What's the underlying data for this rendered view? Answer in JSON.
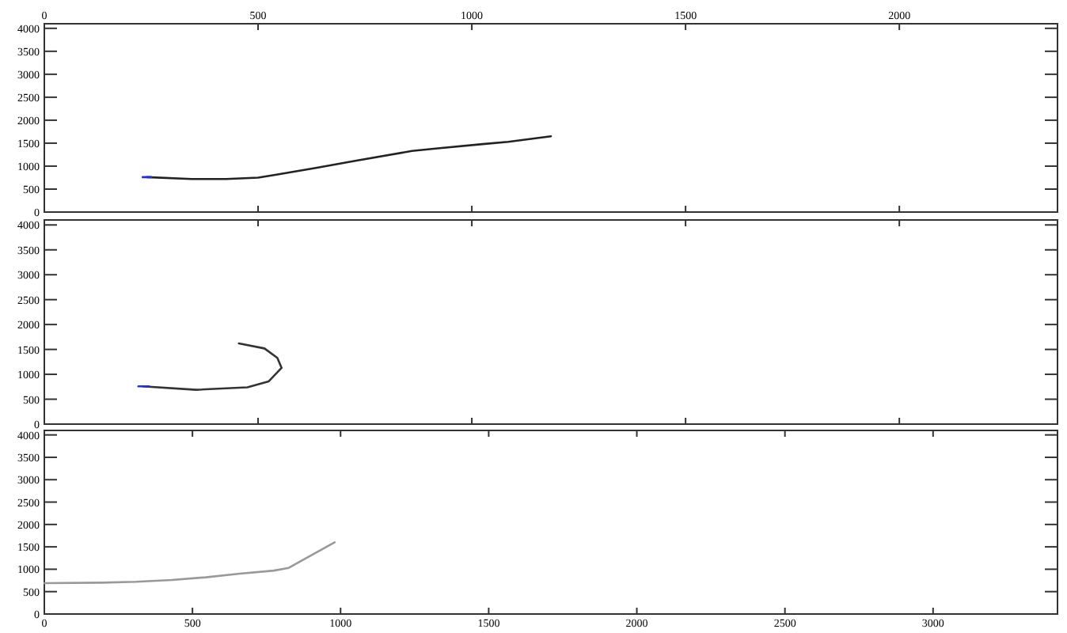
{
  "chart_data": [
    {
      "type": "line",
      "xlim": [
        0,
        2370
      ],
      "xticks": [
        0,
        500,
        1000,
        1500,
        2000
      ],
      "ylim": [
        0,
        4100
      ],
      "yticks": [
        0,
        500,
        1000,
        1500,
        2000,
        2500,
        3000,
        3500,
        4000
      ],
      "grid": false,
      "series": [
        {
          "color": "#222222",
          "x": [
            240,
            345,
            425,
            500,
            540,
            635,
            730,
            860,
            925,
            1025,
            1085,
            1135,
            1185
          ],
          "values": [
            760,
            720,
            720,
            750,
            810,
            960,
            1120,
            1330,
            1390,
            1480,
            1530,
            1590,
            1650
          ]
        },
        {
          "color": "#2233cc",
          "x": [
            230,
            250
          ],
          "values": [
            760,
            760
          ]
        }
      ]
    },
    {
      "type": "line",
      "xlim": [
        0,
        2370
      ],
      "xticks": [
        0,
        500,
        1000,
        1500,
        2000
      ],
      "ylim": [
        0,
        4100
      ],
      "yticks": [
        0,
        500,
        1000,
        1500,
        2000,
        2500,
        3000,
        3500,
        4000
      ],
      "tick_labels": "y",
      "grid": false,
      "series": [
        {
          "color": "#333333",
          "x": [
            230,
            355,
            475,
            525,
            555,
            545,
            515,
            455
          ],
          "values": [
            760,
            690,
            740,
            860,
            1130,
            1330,
            1520,
            1620
          ]
        },
        {
          "color": "#2233cc",
          "x": [
            220,
            245
          ],
          "values": [
            760,
            760
          ]
        }
      ]
    },
    {
      "type": "line",
      "xlim": [
        0,
        3420
      ],
      "xticks": [
        0,
        500,
        1000,
        1500,
        2000,
        2500,
        3000
      ],
      "ylim": [
        0,
        4100
      ],
      "yticks": [
        0,
        500,
        1000,
        1500,
        2000,
        2500,
        3000,
        3500,
        4000
      ],
      "grid": false,
      "series": [
        {
          "color": "#999999",
          "x": [
            0,
            195,
            310,
            430,
            545,
            660,
            775,
            825,
            980
          ],
          "values": [
            690,
            700,
            720,
            760,
            820,
            900,
            970,
            1030,
            1600
          ]
        }
      ]
    }
  ]
}
